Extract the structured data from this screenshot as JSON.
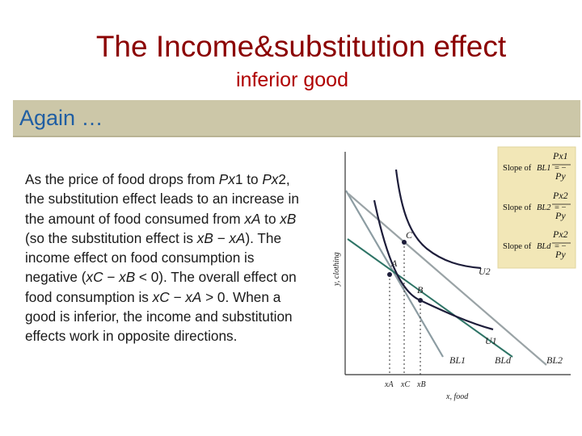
{
  "header": {
    "title": "The Income&substitution effect",
    "subtitle": "inferior good"
  },
  "band": {
    "label": "Again …"
  },
  "body": {
    "segments": [
      "As the price of food drops from ",
      "Px",
      "1 to ",
      "Px",
      "2, the substitution effect leads to an increase in the amount of food consumed from ",
      "xA",
      " to ",
      "xB",
      " (so the substitution effect is ",
      "xB",
      " − ",
      "xA",
      "). The income effect on food consumption is negative (",
      "xC",
      " − ",
      "xB",
      " < 0). The overall effect on food consumption is ",
      "xC",
      " − ",
      "xA",
      " > 0. When a good is inferior, the income and substitution effects work in opposite directions."
    ]
  },
  "diagram": {
    "y_axis_label": "y, clothing",
    "x_axis_label": "x, food",
    "point_labels": {
      "a": "A",
      "b": "B",
      "c": "C"
    },
    "tick_labels": [
      "xA",
      "xC",
      "xB"
    ],
    "curve_labels": {
      "u1": "U1",
      "u2": "U2"
    },
    "line_labels": {
      "bl1": "BL1",
      "bld": "BLd",
      "bl2": "BL2"
    },
    "legend": {
      "rows": [
        {
          "prefix": "Slope of ",
          "bl": "BL1",
          "num": "Px1",
          "den": "Py"
        },
        {
          "prefix": "Slope of ",
          "bl": "BL2",
          "num": "Px2",
          "den": "Py"
        },
        {
          "prefix": "Slope of ",
          "bl": "BLd",
          "num": "Px2",
          "den": "Py"
        }
      ]
    },
    "colors": {
      "bl1": "#8c9ca2",
      "bld": "#2e7466",
      "bl2": "#9aa3a6",
      "curves": "#1d1d3a",
      "legend_bg": "#f2e7b7"
    }
  }
}
